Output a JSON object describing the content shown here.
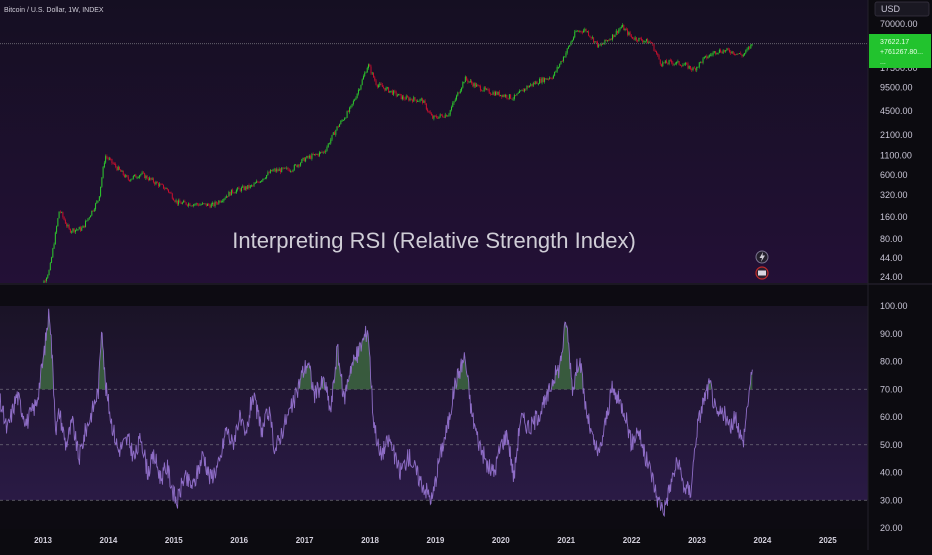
{
  "header": {
    "symbol": "Bitcoin / U.S. Dollar, 1W, INDEX",
    "currency_button": "USD",
    "title": "Interpreting RSI (Relative Strength Index)"
  },
  "price_badge": {
    "line1": "37622.17",
    "line2": "+761267.80...",
    "line3": "..."
  },
  "colors": {
    "background": "#0c0b10",
    "price_pane_top": "#150f22",
    "price_pane_bottom": "#231036",
    "candle_up": "#2ec92e",
    "candle_down": "#c8102e",
    "rsi_line": "#8e6dc6",
    "overbought_fill": "#3f6b41",
    "badge": "#22c32e"
  },
  "icons": [
    "lightning-icon",
    "flag-icon"
  ],
  "chart_data": [
    {
      "type": "candlestick",
      "scale": "log",
      "y_ticks": [
        "70000.00",
        "17500.00",
        "9500.00",
        "4500.00",
        "2100.00",
        "1100.00",
        "600.00",
        "320.00",
        "160.00",
        "80.00",
        "44.00",
        "24.00"
      ],
      "x": [
        2012.9,
        2013.1,
        2013.25,
        2013.4,
        2013.6,
        2013.85,
        2013.95,
        2014.1,
        2014.3,
        2014.5,
        2014.7,
        2014.9,
        2015.05,
        2015.3,
        2015.6,
        2015.9,
        2016.2,
        2016.5,
        2016.8,
        2017.0,
        2017.3,
        2017.5,
        2017.7,
        2017.85,
        2017.97,
        2018.1,
        2018.3,
        2018.5,
        2018.8,
        2018.95,
        2019.2,
        2019.45,
        2019.6,
        2019.8,
        2020.0,
        2020.2,
        2020.4,
        2020.6,
        2020.8,
        2021.0,
        2021.15,
        2021.3,
        2021.5,
        2021.7,
        2021.85,
        2022.0,
        2022.3,
        2022.45,
        2022.6,
        2022.8,
        2022.95,
        2023.1,
        2023.3,
        2023.5,
        2023.7,
        2023.85
      ],
      "y": [
        13,
        30,
        200,
        105,
        110,
        280,
        1100,
        800,
        520,
        620,
        480,
        380,
        250,
        240,
        230,
        360,
        420,
        680,
        720,
        990,
        1250,
        2700,
        4800,
        10000,
        19500,
        10500,
        8500,
        6800,
        6300,
        3600,
        4100,
        12500,
        10200,
        8300,
        7600,
        6800,
        9600,
        11800,
        13500,
        29000,
        55000,
        58000,
        34000,
        47000,
        65000,
        46000,
        39000,
        20000,
        21000,
        19500,
        16600,
        23000,
        30000,
        30000,
        26000,
        37622
      ]
    },
    {
      "type": "line",
      "name": "RSI",
      "ylim": [
        20,
        100
      ],
      "y_ticks": [
        "100.00",
        "90.00",
        "80.00",
        "70.00",
        "60.00",
        "50.00",
        "40.00",
        "30.00",
        "20.00"
      ],
      "levels": [
        70,
        50,
        30
      ],
      "x": [
        2012.0,
        2012.15,
        2012.3,
        2012.45,
        2012.6,
        2012.75,
        2012.9,
        2013.0,
        2013.1,
        2013.2,
        2013.25,
        2013.35,
        2013.45,
        2013.55,
        2013.65,
        2013.75,
        2013.85,
        2013.9,
        2013.95,
        2014.05,
        2014.15,
        2014.3,
        2014.4,
        2014.5,
        2014.6,
        2014.7,
        2014.8,
        2014.9,
        2015.0,
        2015.05,
        2015.15,
        2015.3,
        2015.45,
        2015.55,
        2015.7,
        2015.8,
        2015.9,
        2016.0,
        2016.1,
        2016.2,
        2016.35,
        2016.45,
        2016.55,
        2016.7,
        2016.85,
        2016.95,
        2017.05,
        2017.15,
        2017.3,
        2017.4,
        2017.5,
        2017.6,
        2017.7,
        2017.8,
        2017.9,
        2017.97,
        2018.05,
        2018.15,
        2018.3,
        2018.45,
        2018.6,
        2018.75,
        2018.85,
        2018.95,
        2019.05,
        2019.2,
        2019.3,
        2019.45,
        2019.55,
        2019.65,
        2019.8,
        2019.9,
        2020.0,
        2020.1,
        2020.2,
        2020.3,
        2020.45,
        2020.6,
        2020.7,
        2020.8,
        2020.9,
        2021.0,
        2021.1,
        2021.2,
        2021.3,
        2021.4,
        2021.5,
        2021.6,
        2021.7,
        2021.8,
        2021.9,
        2022.0,
        2022.1,
        2022.2,
        2022.3,
        2022.4,
        2022.5,
        2022.6,
        2022.7,
        2022.8,
        2022.9,
        2023.0,
        2023.1,
        2023.2,
        2023.3,
        2023.4,
        2023.5,
        2023.6,
        2023.7,
        2023.8,
        2023.85
      ],
      "y": [
        50,
        62,
        70,
        55,
        68,
        58,
        65,
        80,
        99,
        55,
        62,
        50,
        58,
        45,
        55,
        62,
        70,
        95,
        72,
        58,
        48,
        52,
        45,
        53,
        40,
        46,
        38,
        42,
        32,
        29,
        38,
        35,
        47,
        38,
        43,
        56,
        50,
        60,
        52,
        68,
        55,
        62,
        48,
        58,
        66,
        75,
        80,
        68,
        73,
        62,
        85,
        66,
        78,
        82,
        88,
        92,
        60,
        46,
        52,
        40,
        46,
        38,
        34,
        30,
        44,
        58,
        72,
        82,
        62,
        52,
        42,
        40,
        50,
        54,
        38,
        60,
        56,
        62,
        66,
        74,
        78,
        95,
        70,
        82,
        63,
        52,
        46,
        58,
        70,
        66,
        62,
        50,
        56,
        46,
        40,
        30,
        27,
        36,
        44,
        35,
        33,
        56,
        66,
        72,
        60,
        62,
        56,
        60,
        50,
        70,
        76
      ]
    }
  ]
}
